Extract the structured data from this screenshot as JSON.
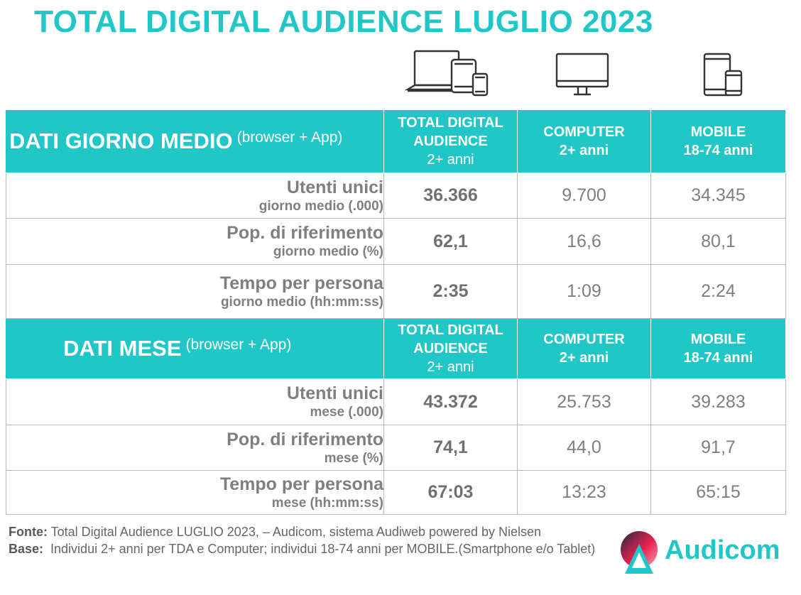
{
  "title": "TOTAL DIGITAL AUDIENCE LUGLIO 2023",
  "icons": {
    "all_devices": "laptop-tablet-phone-icon",
    "computer": "desktop-monitor-icon",
    "mobile": "tablet-phone-icon"
  },
  "colors": {
    "accent": "#21c7c6",
    "text": "#7f7f7f"
  },
  "column_headers": [
    [
      "TOTAL DIGITAL",
      "AUDIENCE",
      "2+ anni"
    ],
    [
      "COMPUTER",
      "2+ anni"
    ],
    [
      "MOBILE",
      "18-74 anni"
    ]
  ],
  "sections": [
    {
      "title": "DATI GIORNO MEDIO",
      "subtitle": "(browser + App)",
      "rows": [
        {
          "label": "Utenti unici",
          "sublabel": "giorno medio (.000)",
          "values": [
            "36.366",
            "9.700",
            "34.345"
          ]
        },
        {
          "label": "Pop. di riferimento",
          "sublabel": "giorno medio (%)",
          "values": [
            "62,1",
            "16,6",
            "80,1"
          ]
        },
        {
          "label": "Tempo per persona",
          "sublabel": "giorno medio (hh:mm:ss)",
          "values": [
            "2:35",
            "1:09",
            "2:24"
          ]
        }
      ]
    },
    {
      "title": "DATI MESE",
      "subtitle": "(browser + App)",
      "rows": [
        {
          "label": "Utenti unici",
          "sublabel": "mese (.000)",
          "values": [
            "43.372",
            "25.753",
            "39.283"
          ]
        },
        {
          "label": "Pop. di riferimento",
          "sublabel": "mese (%)",
          "values": [
            "74,1",
            "44,0",
            "91,7"
          ]
        },
        {
          "label": "Tempo per persona",
          "sublabel": "mese (hh:mm:ss)",
          "values": [
            "67:03",
            "13:23",
            "65:15"
          ]
        }
      ]
    }
  ],
  "footer": {
    "fonte_label": "Fonte:",
    "fonte_text": " Total Digital Audience LUGLIO 2023, – Audicom, sistema Audiweb powered by Nielsen",
    "base_label": "Base:",
    "base_text": "  Individui 2+ anni per TDA e Computer; individui 18-74 anni per MOBILE.(Smartphone e/o Tablet)"
  },
  "logo": {
    "text": "Audicom"
  },
  "chart_data": {
    "type": "table",
    "title": "TOTAL DIGITAL AUDIENCE LUGLIO 2023",
    "columns": [
      "TOTAL DIGITAL AUDIENCE 2+ anni",
      "COMPUTER 2+ anni",
      "MOBILE 18-74 anni"
    ],
    "rows": [
      {
        "section": "DATI GIORNO MEDIO",
        "metric": "Utenti unici giorno medio (.000)",
        "values": [
          36366,
          9700,
          34345
        ]
      },
      {
        "section": "DATI GIORNO MEDIO",
        "metric": "Pop. di riferimento giorno medio (%)",
        "values": [
          62.1,
          16.6,
          80.1
        ]
      },
      {
        "section": "DATI GIORNO MEDIO",
        "metric": "Tempo per persona giorno medio (hh:mm:ss)",
        "values": [
          "2:35",
          "1:09",
          "2:24"
        ]
      },
      {
        "section": "DATI MESE",
        "metric": "Utenti unici mese (.000)",
        "values": [
          43372,
          25753,
          39283
        ]
      },
      {
        "section": "DATI MESE",
        "metric": "Pop. di riferimento mese (%)",
        "values": [
          74.1,
          44.0,
          91.7
        ]
      },
      {
        "section": "DATI MESE",
        "metric": "Tempo per persona mese (hh:mm:ss)",
        "values": [
          "67:03",
          "13:23",
          "65:15"
        ]
      }
    ]
  }
}
